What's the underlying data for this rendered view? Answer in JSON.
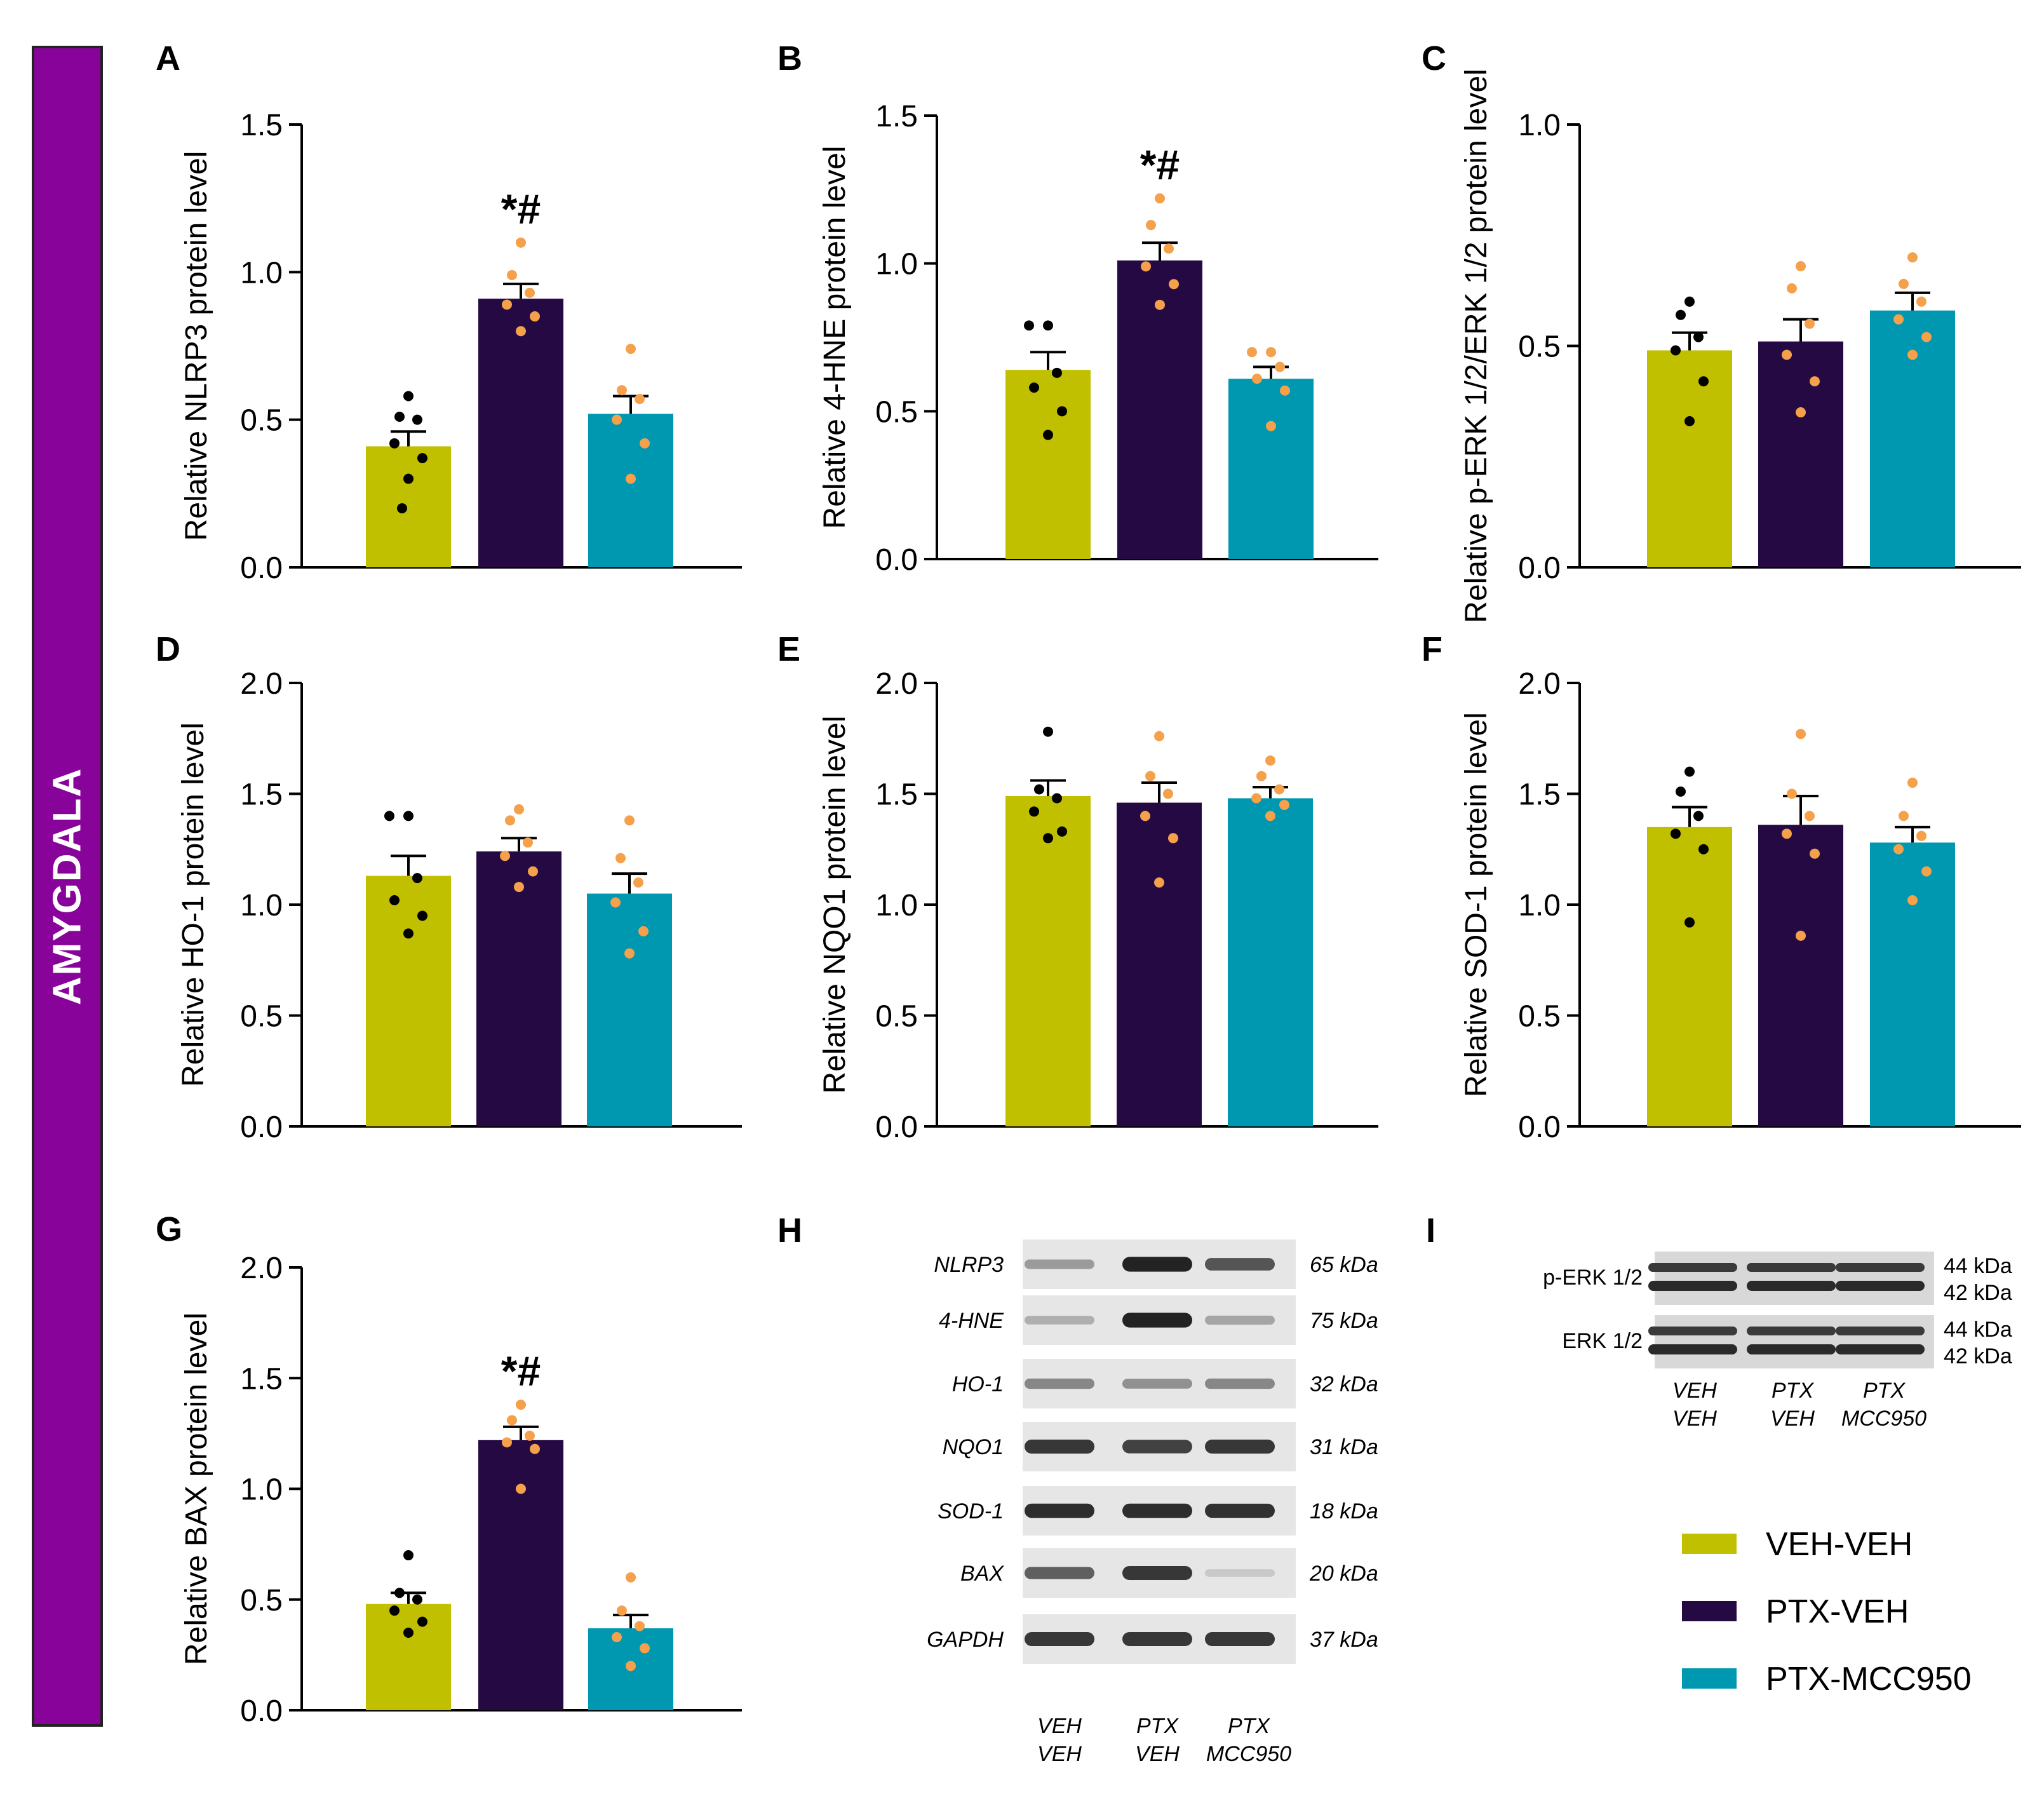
{
  "region_label": "AMYGDALA",
  "colors": {
    "VEH-VEH": "#c1c000",
    "PTX-VEH": "#250943",
    "PTX-MCC950": "#0098b0",
    "region": "#880399",
    "dots_veh": "#000000",
    "dots_ptx": "#f5a04a"
  },
  "chart_data": [
    {
      "id": "A",
      "type": "bar",
      "ylabel": "Relative NLRP3 protein level",
      "ylim": [
        0,
        1.5
      ],
      "yticks": [
        "0.0",
        "0.5",
        "1.0",
        "1.5"
      ],
      "categories": [
        "VEH-VEH",
        "PTX-VEH",
        "PTX-MCC950"
      ],
      "values": [
        0.41,
        0.91,
        0.52
      ],
      "sem": [
        0.05,
        0.05,
        0.06
      ],
      "annotation": "*#",
      "annotated_bar": 1,
      "points": [
        [
          0.58,
          0.51,
          0.5,
          0.42,
          0.37,
          0.3,
          0.2
        ],
        [
          1.1,
          0.99,
          0.93,
          0.89,
          0.85,
          0.8
        ],
        [
          0.74,
          0.6,
          0.57,
          0.5,
          0.42,
          0.3
        ]
      ]
    },
    {
      "id": "B",
      "type": "bar",
      "ylabel": "Relative 4-HNE protein level",
      "ylim": [
        0,
        1.5
      ],
      "yticks": [
        "0.0",
        "0.5",
        "1.0",
        "1.5"
      ],
      "categories": [
        "VEH-VEH",
        "PTX-VEH",
        "PTX-MCC950"
      ],
      "values": [
        0.64,
        1.01,
        0.61
      ],
      "sem": [
        0.06,
        0.06,
        0.04
      ],
      "annotation": "*#",
      "annotated_bar": 1,
      "points": [
        [
          0.79,
          0.79,
          0.63,
          0.58,
          0.5,
          0.42
        ],
        [
          1.22,
          1.13,
          1.05,
          0.99,
          0.93,
          0.86
        ],
        [
          0.7,
          0.7,
          0.65,
          0.61,
          0.57,
          0.45
        ]
      ]
    },
    {
      "id": "C",
      "type": "bar",
      "ylabel": "Relative p-ERK 1/2/ERK 1/2 protein level",
      "ylim": [
        0,
        1.0
      ],
      "yticks": [
        "0.0",
        "0.5",
        "1.0"
      ],
      "categories": [
        "VEH-VEH",
        "PTX-VEH",
        "PTX-MCC950"
      ],
      "values": [
        0.49,
        0.51,
        0.58
      ],
      "sem": [
        0.04,
        0.05,
        0.04
      ],
      "annotation": "",
      "annotated_bar": -1,
      "points": [
        [
          0.6,
          0.57,
          0.52,
          0.49,
          0.42,
          0.33
        ],
        [
          0.68,
          0.63,
          0.55,
          0.48,
          0.42,
          0.35
        ],
        [
          0.7,
          0.64,
          0.6,
          0.56,
          0.52,
          0.48
        ]
      ]
    },
    {
      "id": "D",
      "type": "bar",
      "ylabel": "Relative HO-1 protein level",
      "ylim": [
        0,
        2.0
      ],
      "yticks": [
        "0.0",
        "0.5",
        "1.0",
        "1.5",
        "2.0"
      ],
      "categories": [
        "VEH-VEH",
        "PTX-VEH",
        "PTX-MCC950"
      ],
      "values": [
        1.13,
        1.24,
        1.05
      ],
      "sem": [
        0.09,
        0.06,
        0.09
      ],
      "annotation": "",
      "annotated_bar": -1,
      "points": [
        [
          1.4,
          1.4,
          1.12,
          1.02,
          0.95,
          0.87
        ],
        [
          1.43,
          1.38,
          1.28,
          1.22,
          1.15,
          1.08
        ],
        [
          1.38,
          1.21,
          1.1,
          1.01,
          0.88,
          0.78
        ]
      ]
    },
    {
      "id": "E",
      "type": "bar",
      "ylabel": "Relative NQO1 protein level",
      "ylim": [
        0,
        2.0
      ],
      "yticks": [
        "0.0",
        "0.5",
        "1.0",
        "1.5",
        "2.0"
      ],
      "categories": [
        "VEH-VEH",
        "PTX-VEH",
        "PTX-MCC950"
      ],
      "values": [
        1.49,
        1.46,
        1.48
      ],
      "sem": [
        0.07,
        0.09,
        0.05
      ],
      "annotation": "",
      "annotated_bar": -1,
      "points": [
        [
          1.78,
          1.52,
          1.48,
          1.42,
          1.33,
          1.3
        ],
        [
          1.76,
          1.58,
          1.5,
          1.4,
          1.3,
          1.1
        ],
        [
          1.65,
          1.58,
          1.52,
          1.48,
          1.45,
          1.4
        ]
      ]
    },
    {
      "id": "F",
      "type": "bar",
      "ylabel": "Relative SOD-1 protein level",
      "ylim": [
        0,
        2.0
      ],
      "yticks": [
        "0.0",
        "0.5",
        "1.0",
        "1.5",
        "2.0"
      ],
      "categories": [
        "VEH-VEH",
        "PTX-VEH",
        "PTX-MCC950"
      ],
      "values": [
        1.35,
        1.36,
        1.28
      ],
      "sem": [
        0.09,
        0.13,
        0.07
      ],
      "annotation": "",
      "annotated_bar": -1,
      "points": [
        [
          1.6,
          1.51,
          1.4,
          1.32,
          1.25,
          0.92
        ],
        [
          1.77,
          1.5,
          1.4,
          1.32,
          1.23,
          0.86
        ],
        [
          1.55,
          1.4,
          1.31,
          1.25,
          1.15,
          1.02
        ]
      ]
    },
    {
      "id": "G",
      "type": "bar",
      "ylabel": "Relative BAX protein level",
      "ylim": [
        0,
        2.0
      ],
      "yticks": [
        "0.0",
        "0.5",
        "1.0",
        "1.5",
        "2.0"
      ],
      "categories": [
        "VEH-VEH",
        "PTX-VEH",
        "PTX-MCC950"
      ],
      "values": [
        0.48,
        1.22,
        0.37
      ],
      "sem": [
        0.05,
        0.06,
        0.06
      ],
      "annotation": "*#",
      "annotated_bar": 1,
      "points": [
        [
          0.7,
          0.53,
          0.5,
          0.45,
          0.4,
          0.35
        ],
        [
          1.38,
          1.31,
          1.24,
          1.21,
          1.18,
          1.0
        ],
        [
          0.6,
          0.45,
          0.38,
          0.33,
          0.28,
          0.2
        ]
      ]
    }
  ],
  "blots_h": {
    "letter": "H",
    "rows": [
      {
        "label": "NLRP3",
        "kda": "65 kDa",
        "intensity": [
          0.35,
          0.95,
          0.7
        ]
      },
      {
        "label": "4-HNE",
        "kda": "75 kDa",
        "intensity": [
          0.25,
          0.95,
          0.3
        ]
      },
      {
        "label": "HO-1",
        "kda": "32 kDa",
        "intensity": [
          0.45,
          0.4,
          0.45
        ]
      },
      {
        "label": "NQO1",
        "kda": "31 kDa",
        "intensity": [
          0.85,
          0.8,
          0.85
        ]
      },
      {
        "label": "SOD-1",
        "kda": "18 kDa",
        "intensity": [
          0.9,
          0.9,
          0.88
        ]
      },
      {
        "label": "BAX",
        "kda": "20 kDa",
        "intensity": [
          0.65,
          0.85,
          0.12
        ]
      },
      {
        "label": "GAPDH",
        "kda": "37 kDa",
        "intensity": [
          0.85,
          0.85,
          0.85
        ]
      }
    ],
    "lanes": [
      [
        "VEH",
        "VEH"
      ],
      [
        "PTX",
        "VEH"
      ],
      [
        "PTX",
        "MCC950"
      ]
    ]
  },
  "blots_i": {
    "letter": "I",
    "rows": [
      {
        "label": "p-ERK 1/2",
        "kda": [
          "44 kDa",
          "42 kDa"
        ]
      },
      {
        "label": "ERK 1/2",
        "kda": [
          "44 kDa",
          "42 kDa"
        ]
      }
    ],
    "lanes": [
      [
        "VEH",
        "VEH"
      ],
      [
        "PTX",
        "VEH"
      ],
      [
        "PTX",
        "MCC950"
      ]
    ]
  },
  "legend": [
    {
      "label": "VEH-VEH",
      "color": "#c1c000"
    },
    {
      "label": "PTX-VEH",
      "color": "#250943"
    },
    {
      "label": "PTX-MCC950",
      "color": "#0098b0"
    }
  ]
}
